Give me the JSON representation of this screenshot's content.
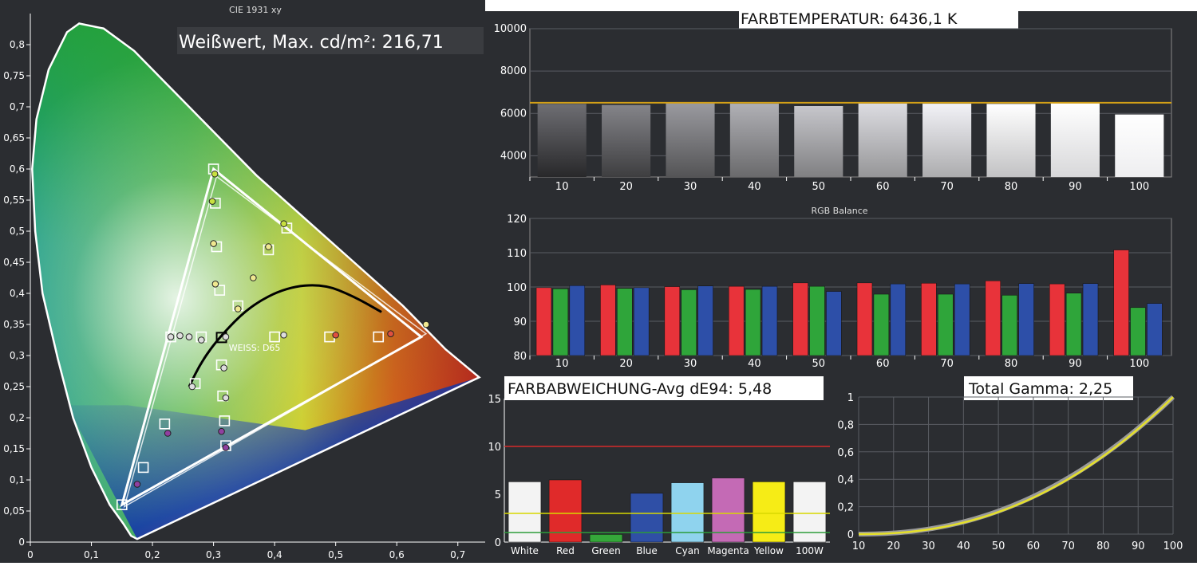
{
  "colors": {
    "panel_bg": "#2b2d31",
    "axis_text": "#ffffff",
    "grid": "#5a5d63",
    "target_line": "#d4a017",
    "red": "#e8333a",
    "green": "#2fa53a",
    "blue": "#2d4fa8",
    "yellow_line": "#d8d800",
    "red_line": "#d62b2b",
    "green_line": "#2c9c3a",
    "gamma_target": "#9a9a9a",
    "gamma_measured": "#e5e02a",
    "gamut_outline": "#ffffff",
    "planckian": "#000000"
  },
  "chart_data": [
    {
      "id": "cie",
      "type": "scatter",
      "title": "CIE 1931 xy",
      "badge": "Weißwert, Max. cd/m²: 216,71",
      "whitepoint_label": "WEISS: D65",
      "xlim": [
        0,
        0.75
      ],
      "ylim": [
        0,
        0.85
      ],
      "xticks": [
        "0",
        "0,1",
        "0,2",
        "0,3",
        "0,4",
        "0,5",
        "0,6",
        "0,7"
      ],
      "yticks": [
        "0",
        "0,05",
        "0,1",
        "0,15",
        "0,2",
        "0,25",
        "0,3",
        "0,35",
        "0,4",
        "0,45",
        "0,5",
        "0,55",
        "0,6",
        "0,65",
        "0,7",
        "0,75",
        "0,8"
      ],
      "target_gamut": [
        [
          0.64,
          0.33
        ],
        [
          0.3,
          0.6
        ],
        [
          0.15,
          0.06
        ]
      ],
      "measured_gamut": [
        [
          0.648,
          0.335
        ],
        [
          0.305,
          0.588
        ],
        [
          0.154,
          0.057
        ]
      ],
      "targets": [
        [
          0.3,
          0.6
        ],
        [
          0.303,
          0.545
        ],
        [
          0.305,
          0.475
        ],
        [
          0.31,
          0.405
        ],
        [
          0.42,
          0.505
        ],
        [
          0.39,
          0.47
        ],
        [
          0.34,
          0.38
        ],
        [
          0.57,
          0.33
        ],
        [
          0.49,
          0.33
        ],
        [
          0.4,
          0.33
        ],
        [
          0.313,
          0.329
        ],
        [
          0.28,
          0.33
        ],
        [
          0.23,
          0.33
        ],
        [
          0.27,
          0.255
        ],
        [
          0.313,
          0.285
        ],
        [
          0.315,
          0.235
        ],
        [
          0.318,
          0.195
        ],
        [
          0.32,
          0.155
        ],
        [
          0.22,
          0.19
        ],
        [
          0.185,
          0.12
        ],
        [
          0.15,
          0.06
        ]
      ],
      "measured": [
        [
          0.302,
          0.592
        ],
        [
          0.298,
          0.548
        ],
        [
          0.3,
          0.48
        ],
        [
          0.303,
          0.415
        ],
        [
          0.415,
          0.512
        ],
        [
          0.39,
          0.475
        ],
        [
          0.365,
          0.425
        ],
        [
          0.34,
          0.375
        ],
        [
          0.59,
          0.335
        ],
        [
          0.5,
          0.333
        ],
        [
          0.415,
          0.333
        ],
        [
          0.32,
          0.33
        ],
        [
          0.28,
          0.325
        ],
        [
          0.26,
          0.33
        ],
        [
          0.245,
          0.332
        ],
        [
          0.23,
          0.33
        ],
        [
          0.265,
          0.25
        ],
        [
          0.317,
          0.28
        ],
        [
          0.32,
          0.232
        ],
        [
          0.313,
          0.178
        ],
        [
          0.32,
          0.152
        ],
        [
          0.225,
          0.175
        ],
        [
          0.175,
          0.093
        ],
        [
          0.648,
          0.35
        ]
      ],
      "planckian": [
        [
          0.26,
          0.25
        ],
        [
          0.28,
          0.29
        ],
        [
          0.31,
          0.33
        ],
        [
          0.36,
          0.38
        ],
        [
          0.42,
          0.41
        ],
        [
          0.48,
          0.415
        ],
        [
          0.53,
          0.395
        ],
        [
          0.575,
          0.37
        ]
      ]
    },
    {
      "id": "cct",
      "type": "bar",
      "title": "FARBTEMPERATUR: 6436,1 K",
      "categories": [
        "10",
        "20",
        "30",
        "40",
        "50",
        "60",
        "70",
        "80",
        "90",
        "100"
      ],
      "values": [
        6450,
        6400,
        6480,
        6460,
        6350,
        6470,
        6460,
        6450,
        6480,
        5950
      ],
      "target": 6504,
      "ylim": [
        3000,
        10000
      ],
      "yticks": [
        "4000",
        "6000",
        "8000",
        "10000"
      ]
    },
    {
      "id": "rgb",
      "type": "bar",
      "title": "RGB Balance",
      "categories": [
        "10",
        "20",
        "30",
        "40",
        "50",
        "60",
        "70",
        "80",
        "90",
        "100"
      ],
      "series": [
        {
          "color": "#e8333a",
          "values": [
            99.8,
            100.6,
            100.1,
            100.2,
            101.2,
            101.2,
            101.1,
            101.8,
            100.9,
            110.8
          ]
        },
        {
          "color": "#2fa53a",
          "values": [
            99.5,
            99.6,
            99.2,
            99.3,
            100.2,
            97.9,
            97.9,
            97.6,
            98.2,
            94.0
          ]
        },
        {
          "color": "#2d4fa8",
          "values": [
            100.4,
            99.8,
            100.3,
            100.2,
            98.7,
            100.9,
            100.9,
            101.0,
            101.0,
            95.2
          ]
        }
      ],
      "ylim": [
        80,
        120
      ],
      "yticks": [
        "80",
        "90",
        "100",
        "110",
        "120"
      ]
    },
    {
      "id": "de",
      "type": "bar",
      "title": "FARBABWEICHUNG-Avg dE94: 5,48",
      "categories": [
        "White",
        "Red",
        "Green",
        "Blue",
        "Cyan",
        "Magenta",
        "Yellow",
        "100W"
      ],
      "values": [
        6.3,
        6.5,
        0.8,
        5.1,
        6.2,
        6.7,
        6.3,
        6.3
      ],
      "bar_colors": [
        "#f3f3f3",
        "#e02a2a",
        "#35a83a",
        "#2f4fa6",
        "#8fd3ee",
        "#c46ab5",
        "#f6ec16",
        "#f3f3f3"
      ],
      "reference_lines": [
        10,
        3,
        1
      ],
      "ylim": [
        0,
        15
      ],
      "yticks": [
        "0",
        "5",
        "10",
        "15"
      ]
    },
    {
      "id": "gamma",
      "type": "line",
      "title": "Total Gamma: 2,25",
      "x": [
        10,
        20,
        30,
        40,
        50,
        60,
        70,
        80,
        90,
        100
      ],
      "target_gamma": 2.2,
      "measured_gamma": 2.25,
      "xlim": [
        10,
        100
      ],
      "ylim": [
        0,
        1
      ],
      "xticks": [
        "10",
        "20",
        "30",
        "40",
        "50",
        "60",
        "70",
        "80",
        "90",
        "100"
      ],
      "yticks": [
        "0",
        "0,2",
        "0,4",
        "0,6",
        "0,8",
        "1"
      ]
    }
  ]
}
